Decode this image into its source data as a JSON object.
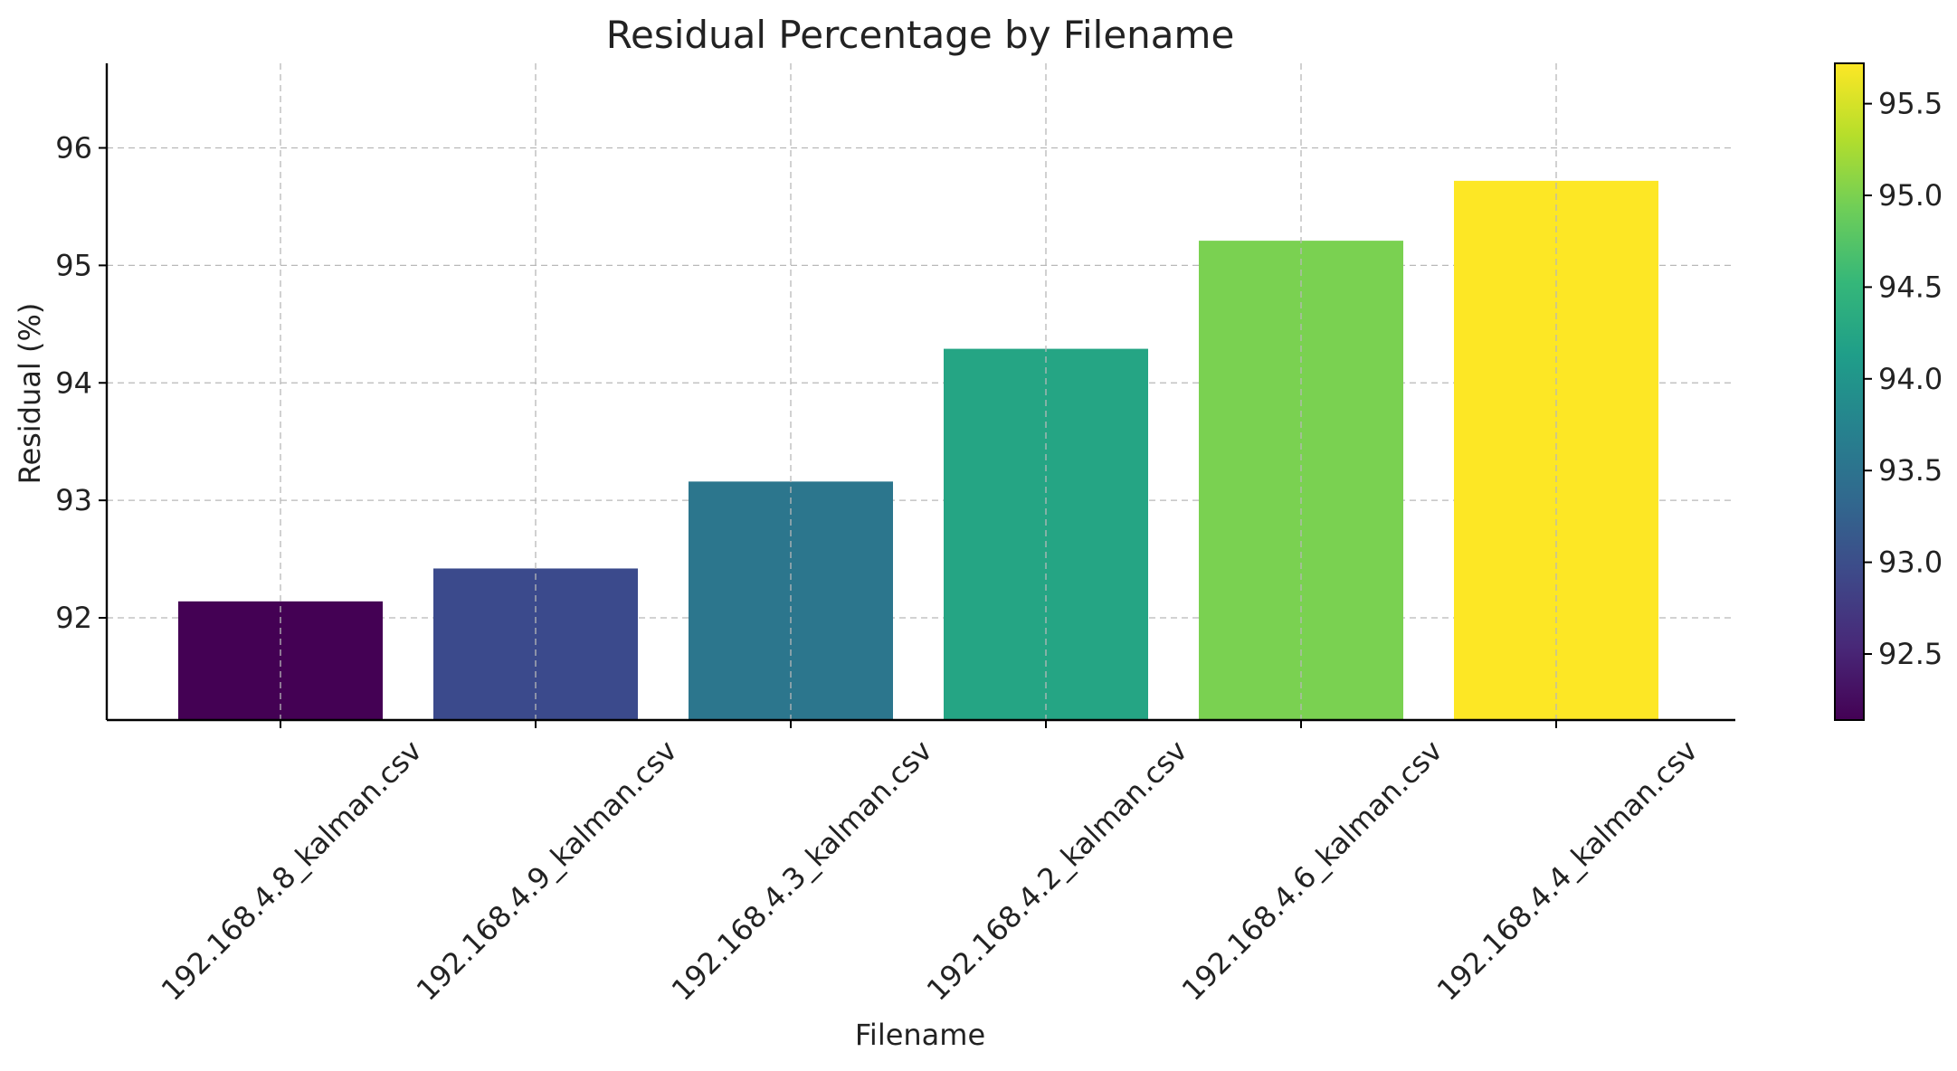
{
  "chart_data": {
    "type": "bar",
    "title": "Residual Percentage by Filename",
    "xlabel": "Filename",
    "ylabel": "Residual (%)",
    "categories": [
      "192.168.4.8_kalman.csv",
      "192.168.4.9_kalman.csv",
      "192.168.4.3_kalman.csv",
      "192.168.4.2_kalman.csv",
      "192.168.4.6_kalman.csv",
      "192.168.4.4_kalman.csv"
    ],
    "values": [
      92.14,
      92.42,
      93.16,
      94.29,
      95.21,
      95.72
    ],
    "bar_colors": [
      "#440154",
      "#3b4a8c",
      "#2c768d",
      "#25a584",
      "#7ad151",
      "#fde725"
    ],
    "ylim": [
      91.13,
      96.72
    ],
    "yticks": [
      92,
      93,
      94,
      95,
      96
    ],
    "grid": true,
    "colorbar": {
      "colormap": "viridis",
      "range": [
        92.14,
        95.72
      ],
      "ticks": [
        "92.5",
        "93.0",
        "93.5",
        "94.0",
        "94.5",
        "95.0",
        "95.5"
      ],
      "colors": [
        "#440154",
        "#482878",
        "#3e4989",
        "#31688e",
        "#26828e",
        "#1f9e89",
        "#35b779",
        "#6ece58",
        "#b5de2b",
        "#fde725"
      ]
    }
  }
}
